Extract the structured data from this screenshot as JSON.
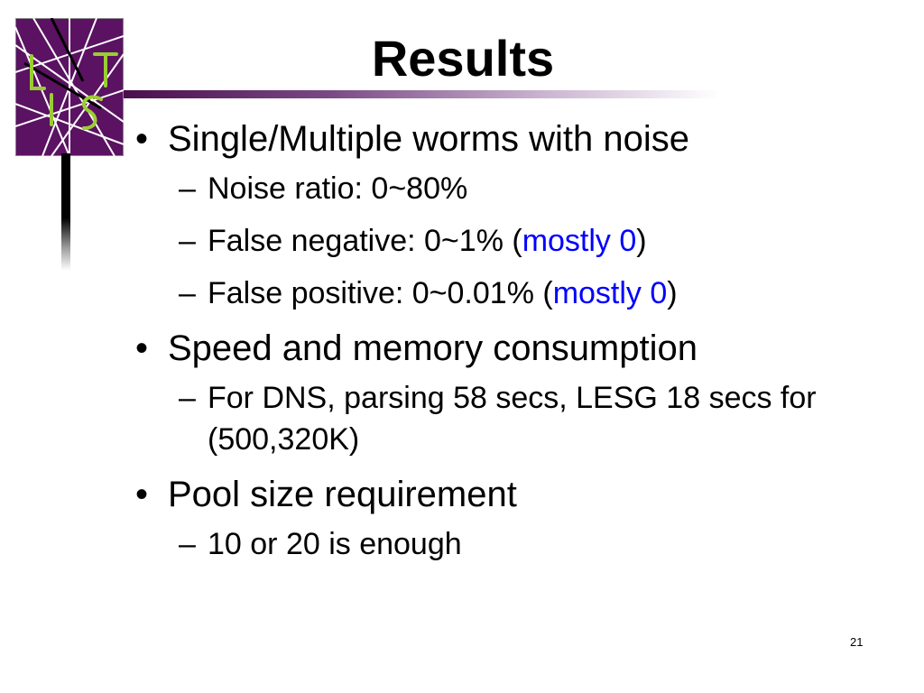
{
  "slide": {
    "title": "Results",
    "page_number": "21"
  },
  "logo": {
    "letters": [
      "L",
      "T",
      "I",
      "S"
    ],
    "background_color": "#5b1262",
    "letter_color": "#9acd32"
  },
  "content": {
    "bullet_1": {
      "text": "Single/Multiple worms with noise",
      "subs": [
        {
          "text": "Noise ratio: 0~80%"
        },
        {
          "pre": "False negative: 0~1% (",
          "highlight": "mostly 0",
          "post": ")"
        },
        {
          "pre": "False positive: 0~0.01% (",
          "highlight": "mostly 0",
          "post": ")"
        }
      ]
    },
    "bullet_2": {
      "text": "Speed and memory consumption",
      "subs": [
        {
          "text": "For DNS, parsing 58 secs, LESG 18 secs for (500,320K)"
        }
      ]
    },
    "bullet_3": {
      "text": "Pool size requirement",
      "subs": [
        {
          "text": "10 or 20 is enough"
        }
      ]
    },
    "bullet_symbol": "•",
    "dash_symbol": "–"
  },
  "colors": {
    "text": "#000000",
    "highlight": "#0000ff",
    "rule_start": "#4a0e4e"
  }
}
